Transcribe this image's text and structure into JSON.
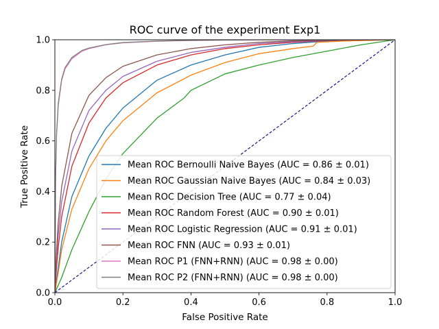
{
  "chart_data": {
    "type": "line",
    "title": "ROC curve of the experiment Exp1",
    "xlabel": "False Positive Rate",
    "ylabel": "True Positive Rate",
    "xlim": [
      0,
      1
    ],
    "ylim": [
      0,
      1
    ],
    "xticks": [
      "0.0",
      "0.2",
      "0.4",
      "0.6",
      "0.8",
      "1.0"
    ],
    "yticks": [
      "0.0",
      "0.2",
      "0.4",
      "0.6",
      "0.8",
      "1.0"
    ],
    "grid": false,
    "legend_position": "lower-right",
    "reference_line": {
      "x": [
        0,
        1
      ],
      "y": [
        0,
        1
      ],
      "color": "#000080",
      "style": "dashed"
    },
    "series": [
      {
        "name": "Mean ROC Bernoulli Naive Bayes (AUC = 0.86 ± 0.01)",
        "color": "#1f77b4",
        "x": [
          0,
          0.01,
          0.02,
          0.05,
          0.1,
          0.15,
          0.2,
          0.3,
          0.4,
          0.5,
          0.6,
          0.7,
          0.8,
          0.9,
          1.0
        ],
        "y": [
          0,
          0.1,
          0.2,
          0.38,
          0.54,
          0.65,
          0.73,
          0.84,
          0.9,
          0.94,
          0.97,
          0.985,
          0.995,
          1.0,
          1.0
        ]
      },
      {
        "name": "Mean ROC Gaussian Naive Bayes (AUC = 0.84 ± 0.03)",
        "color": "#ff7f0e",
        "x": [
          0,
          0.01,
          0.02,
          0.05,
          0.1,
          0.15,
          0.2,
          0.3,
          0.4,
          0.5,
          0.6,
          0.7,
          0.76,
          0.77,
          0.85,
          1.0
        ],
        "y": [
          0,
          0.08,
          0.17,
          0.33,
          0.49,
          0.6,
          0.68,
          0.79,
          0.86,
          0.91,
          0.945,
          0.965,
          0.975,
          0.99,
          0.995,
          1.0
        ]
      },
      {
        "name": "Mean ROC Decision Tree (AUC = 0.77 ± 0.04)",
        "color": "#2ca02c",
        "x": [
          0,
          0.02,
          0.05,
          0.1,
          0.15,
          0.2,
          0.3,
          0.38,
          0.4,
          0.5,
          0.6,
          0.7,
          0.8,
          0.9,
          1.0
        ],
        "y": [
          0,
          0.06,
          0.17,
          0.32,
          0.45,
          0.55,
          0.69,
          0.77,
          0.8,
          0.865,
          0.9,
          0.93,
          0.955,
          0.98,
          1.0
        ]
      },
      {
        "name": "Mean ROC Random Forest (AUC = 0.90 ± 0.01)",
        "color": "#d62728",
        "x": [
          0,
          0.005,
          0.01,
          0.02,
          0.05,
          0.1,
          0.15,
          0.2,
          0.3,
          0.4,
          0.5,
          0.6,
          0.7,
          0.8,
          0.9,
          1.0
        ],
        "y": [
          0,
          0.1,
          0.18,
          0.3,
          0.5,
          0.67,
          0.77,
          0.83,
          0.9,
          0.94,
          0.965,
          0.98,
          0.99,
          0.997,
          1.0,
          1.0
        ]
      },
      {
        "name": "Mean ROC Logistic Regression (AUC = 0.91 ± 0.01)",
        "color": "#9467bd",
        "x": [
          0,
          0.005,
          0.01,
          0.02,
          0.05,
          0.1,
          0.15,
          0.2,
          0.3,
          0.4,
          0.5,
          0.6,
          0.7,
          0.8,
          0.9,
          1.0
        ],
        "y": [
          0,
          0.14,
          0.23,
          0.36,
          0.56,
          0.72,
          0.8,
          0.855,
          0.915,
          0.95,
          0.97,
          0.985,
          0.993,
          0.998,
          1.0,
          1.0
        ]
      },
      {
        "name": "Mean ROC FNN (AUC = 0.93 ± 0.01)",
        "color": "#8c564b",
        "x": [
          0,
          0.005,
          0.01,
          0.02,
          0.05,
          0.1,
          0.15,
          0.2,
          0.3,
          0.4,
          0.5,
          0.6,
          0.7,
          0.8,
          0.9,
          1.0
        ],
        "y": [
          0,
          0.17,
          0.28,
          0.42,
          0.63,
          0.78,
          0.85,
          0.895,
          0.94,
          0.965,
          0.98,
          0.99,
          0.996,
          0.999,
          1.0,
          1.0
        ]
      },
      {
        "name": "Mean ROC P1 (FNN+RNN) (AUC = 0.98 ± 0.00)",
        "color": "#e377c2",
        "x": [
          0,
          0.002,
          0.005,
          0.01,
          0.02,
          0.03,
          0.05,
          0.08,
          0.1,
          0.15,
          0.2,
          0.3,
          0.4,
          0.5,
          0.6,
          0.8,
          1.0
        ],
        "y": [
          0,
          0.45,
          0.62,
          0.74,
          0.84,
          0.885,
          0.925,
          0.955,
          0.965,
          0.98,
          0.988,
          0.994,
          0.997,
          0.999,
          1.0,
          1.0,
          1.0
        ]
      },
      {
        "name": "Mean ROC P2 (FNN+RNN) (AUC = 0.98 ± 0.00)",
        "color": "#7f7f7f",
        "x": [
          0,
          0.002,
          0.005,
          0.01,
          0.02,
          0.03,
          0.05,
          0.08,
          0.1,
          0.15,
          0.2,
          0.3,
          0.4,
          0.5,
          0.6,
          0.8,
          1.0
        ],
        "y": [
          0,
          0.46,
          0.63,
          0.75,
          0.845,
          0.89,
          0.93,
          0.958,
          0.967,
          0.981,
          0.989,
          0.995,
          0.998,
          0.999,
          1.0,
          1.0,
          1.0
        ]
      }
    ]
  }
}
